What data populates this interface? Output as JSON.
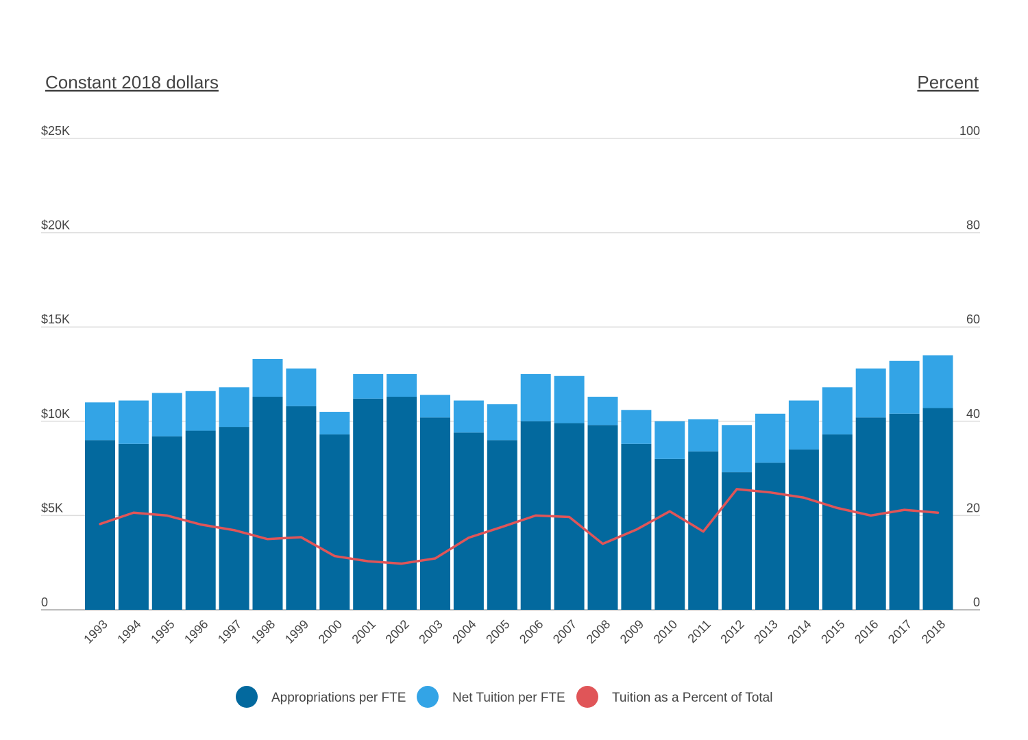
{
  "chart_data": {
    "type": "bar",
    "stacked": true,
    "left_axis_title": "Constant 2018 dollars",
    "right_axis_title": "Percent",
    "left_ticks": [
      "0",
      "$5K",
      "$10K",
      "$15K",
      "$20K",
      "$25K"
    ],
    "right_ticks": [
      "0",
      "20",
      "40",
      "60",
      "80",
      "100"
    ],
    "left_ylim": [
      0,
      25000
    ],
    "right_ylim": [
      0,
      100
    ],
    "grid": true,
    "legend_position": "bottom",
    "categories": [
      "1993",
      "1994",
      "1995",
      "1996",
      "1997",
      "1998",
      "1999",
      "2000",
      "2001",
      "2002",
      "2003",
      "2004",
      "2005",
      "2006",
      "2007",
      "2008",
      "2009",
      "2010",
      "2011",
      "2012",
      "2013",
      "2014",
      "2015",
      "2016",
      "2017",
      "2018"
    ],
    "series": [
      {
        "name": "Appropriations per FTE",
        "color": "#03699e",
        "axis": "left",
        "kind": "bar",
        "values": [
          9000,
          8800,
          9200,
          9500,
          9700,
          11300,
          10800,
          9300,
          11200,
          11300,
          10200,
          9400,
          9000,
          10000,
          9900,
          9800,
          8800,
          8000,
          8400,
          7300,
          7800,
          8500,
          9300,
          10200,
          10400,
          10700
        ]
      },
      {
        "name": "Net Tuition per FTE",
        "color": "#33a4e6",
        "axis": "left",
        "kind": "bar",
        "values": [
          2000,
          2300,
          2300,
          2100,
          2100,
          2000,
          2000,
          1200,
          1300,
          1200,
          1200,
          1700,
          1900,
          2500,
          2500,
          1500,
          1800,
          2000,
          1700,
          2500,
          2600,
          2600,
          2500,
          2600,
          2800,
          2800
        ]
      },
      {
        "name": "Tuition as a Percent of Total",
        "color": "#e05558",
        "axis": "right",
        "kind": "line",
        "values": [
          18.2,
          20.6,
          20.0,
          18.1,
          16.9,
          15.0,
          15.4,
          11.4,
          10.3,
          9.8,
          10.9,
          15.3,
          17.6,
          20.0,
          19.7,
          14.0,
          17.0,
          20.9,
          16.6,
          25.6,
          24.9,
          23.8,
          21.6,
          20.0,
          21.2,
          20.6
        ]
      }
    ]
  }
}
